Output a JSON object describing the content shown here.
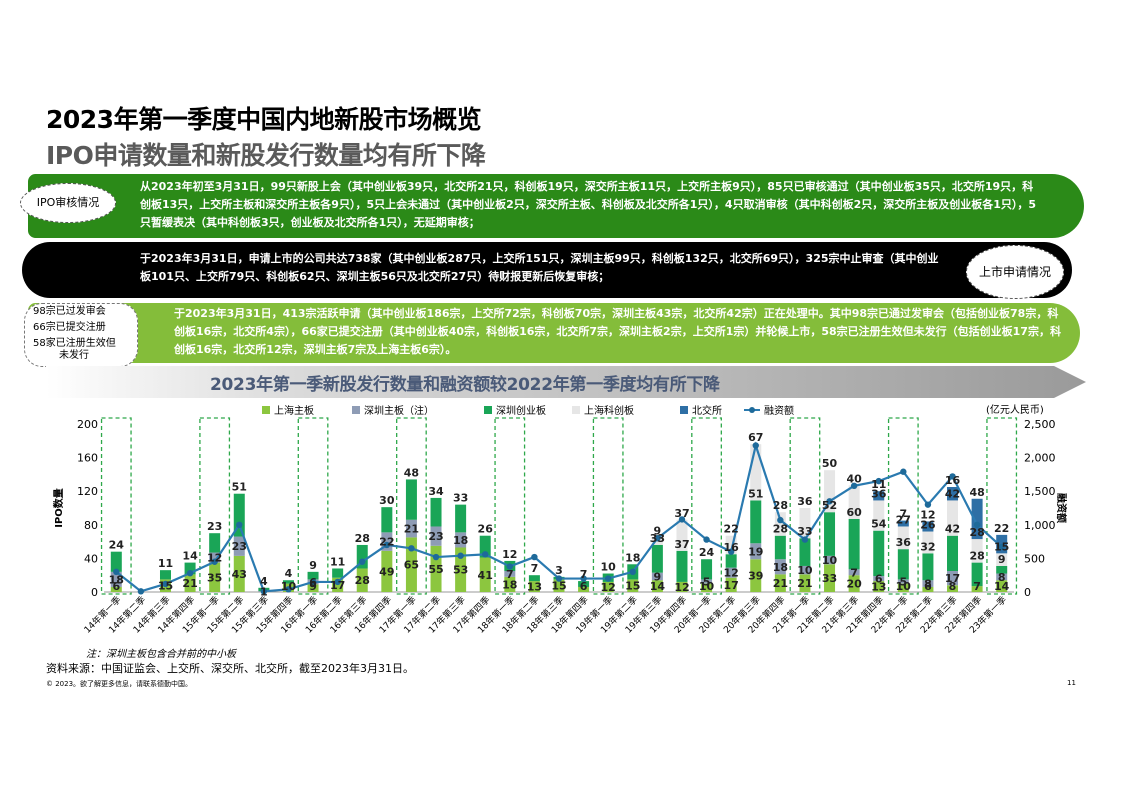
{
  "title": "2023年第一季度中国内地新股市场概览",
  "subtitle": "IPO申请数量和新股发行数量均有所下降",
  "band1": {
    "label": "IPO审核情况",
    "text": "从2023年初至3月31日，99只新股上会（其中创业板39只，北交所21只，科创板19只，深交所主板11只，上交所主板9只），85只已审核通过（其中创业板35只，北交所19只，科创板13只，上交所主板和深交所主板各9只），5只上会未通过（其中创业板2只，深交所主板、科创板及北交所各1只），4只取消审核（其中科创板2只，深交所主板及创业板各1只），5只暂缓表决（其中科创板3只，创业板及北交所各1只），无延期审核；"
  },
  "band2": {
    "label": "上市申请情况",
    "text": "于2023年3月31日，申请上市的公司共达738家（其中创业板287只，上交所151只，深圳主板99只，科创板132只，北交所69只），325宗中止审查（其中创业板101只、上交所79只、科创板62只、深圳主板56只及北交所27只）待财报更新后恢复审核；"
  },
  "band3": {
    "labels": [
      "98宗已过发审会",
      "66宗已提交注册",
      "58家已注册生效但",
      "未发行"
    ],
    "text": "于2023年3月31日，413宗活跃申请（其中创业板186宗，上交所72宗，科创板70宗，深圳主板43宗，北交所42宗）正在处理中。其中98宗已通过发审会（包括创业板78宗，科创板16宗，北交所4宗），66家已提交注册（其中创业板40宗，科创板16宗，北交所7宗，深圳主板2宗，上交所1宗）并轮候上市，58宗已注册生效但未发行（包括创业板17宗，科创板16宗，北交所12宗，深圳主板7宗及上海主板6宗）。"
  },
  "arrow_title": "2023年第一季新股发行数量和融资额较2022年第一季度均有所下降",
  "unit_label": "(亿元人民币)",
  "note": "注：深圳主板包含合并前的中小板",
  "source": "资料来源：中国证监会、上交所、深交所、北交所，截至2023年3月31日。",
  "copyright": "© 2023。欲了解更多信息，请联系德勤中国。",
  "page_number": "11",
  "chart_data": {
    "type": "bar",
    "stacked": true,
    "ylabel": "IPO数量",
    "y2label": "融资额",
    "ylim": [
      0,
      200
    ],
    "y2lim": [
      0,
      2500
    ],
    "yticks": [
      0,
      40,
      80,
      120,
      160,
      200
    ],
    "y2ticks": [
      "0",
      "500",
      "1,000",
      "1,500",
      "2,000",
      "2,500"
    ],
    "categories": [
      "14年第一季",
      "14年第二季",
      "14年第三季",
      "14年第四季",
      "15年第一季",
      "15年第二季",
      "15年第三季",
      "15年第四季",
      "16年第一季",
      "16年第二季",
      "16年第三季",
      "16年第四季",
      "17年第一季",
      "17年第二季",
      "17年第三季",
      "17年第四季",
      "18年第一季",
      "18年第二季",
      "18年第三季",
      "18年第四季",
      "19年第一季",
      "19年第二季",
      "19年第三季",
      "19年第四季",
      "20年第一季",
      "20年第二季",
      "20年第三季",
      "20年第四季",
      "21年第一季",
      "21年第二季",
      "21年第三季",
      "21年第四季",
      "22年第一季",
      "22年第二季",
      "22年第三季",
      "22年第四季",
      "23年第一季"
    ],
    "highlight_q1": [
      0,
      4,
      8,
      12,
      16,
      20,
      24,
      28,
      32,
      36
    ],
    "series": [
      {
        "name": "上海主板",
        "color": "#8cc63f",
        "values": [
          6,
          0,
          15,
          21,
          35,
          43,
          0,
          10,
          9,
          17,
          28,
          49,
          65,
          55,
          53,
          41,
          18,
          13,
          15,
          6,
          12,
          15,
          14,
          12,
          10,
          17,
          39,
          21,
          21,
          33,
          20,
          13,
          10,
          6,
          8,
          7,
          14
        ]
      },
      {
        "name": "深圳主板（注）",
        "color": "#8e9cb5",
        "values": [
          18,
          0,
          0,
          0,
          12,
          23,
          1,
          0,
          6,
          0,
          0,
          22,
          21,
          23,
          18,
          0,
          7,
          0,
          0,
          0,
          0,
          0,
          9,
          0,
          5,
          12,
          19,
          18,
          10,
          10,
          7,
          6,
          5,
          8,
          17,
          0,
          8
        ]
      },
      {
        "name": "深圳创业板",
        "color": "#1aa557",
        "values": [
          24,
          0,
          11,
          14,
          23,
          51,
          4,
          4,
          9,
          11,
          28,
          30,
          48,
          34,
          33,
          26,
          12,
          7,
          3,
          7,
          10,
          18,
          33,
          37,
          24,
          16,
          51,
          28,
          33,
          52,
          60,
          54,
          36,
          32,
          42,
          28,
          9
        ]
      },
      {
        "name": "上海科创板",
        "color": "#e6e6e6",
        "values": [
          0,
          0,
          0,
          0,
          0,
          0,
          0,
          0,
          0,
          0,
          0,
          0,
          0,
          0,
          0,
          0,
          0,
          0,
          0,
          0,
          0,
          0,
          9,
          37,
          0,
          22,
          67,
          28,
          36,
          50,
          40,
          36,
          27,
          26,
          42,
          28,
          15
        ]
      },
      {
        "name": "北交所",
        "color": "#2e6fa5",
        "values": [
          0,
          0,
          0,
          0,
          0,
          0,
          0,
          0,
          0,
          0,
          0,
          0,
          0,
          0,
          0,
          0,
          0,
          0,
          0,
          0,
          0,
          0,
          0,
          0,
          0,
          0,
          0,
          0,
          0,
          0,
          0,
          11,
          7,
          12,
          16,
          48,
          22
        ]
      }
    ],
    "line": {
      "name": "融资额",
      "color": "#2a7ab0",
      "values": [
        300,
        10,
        120,
        280,
        450,
        1000,
        10,
        40,
        150,
        150,
        450,
        700,
        650,
        520,
        540,
        560,
        380,
        520,
        200,
        200,
        200,
        300,
        800,
        1080,
        780,
        600,
        2180,
        1070,
        780,
        1350,
        1580,
        1650,
        1790,
        1300,
        1720,
        1000,
        670
      ]
    }
  }
}
